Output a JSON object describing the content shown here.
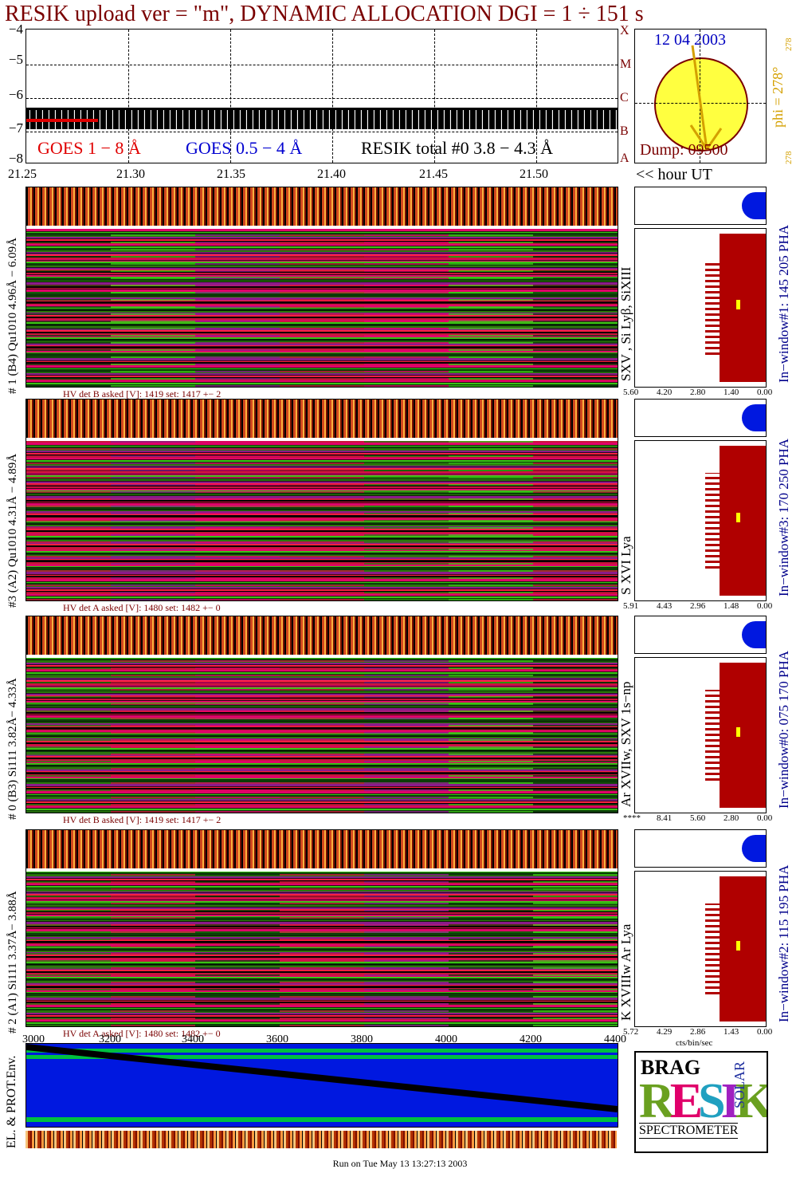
{
  "title": "RESIK upload ver = \"m\", DYNAMIC ALLOCATION  DGI =   1 ÷ 151 s",
  "lightcurve": {
    "yticks": [
      "−4",
      "−5",
      "−6",
      "−7",
      "−8"
    ],
    "goes18": "GOES 1 − 8 Å",
    "goes054": "GOES 0.5 − 4 Å",
    "resik": "RESIK  total #0  3.8 − 4.3 Å",
    "xticks": [
      "21.25",
      "21.30",
      "21.35",
      "21.40",
      "21.45",
      "21.50"
    ],
    "hour_label": "<< hour UT",
    "class_letters": [
      "X",
      "M",
      "C",
      "B",
      "A"
    ]
  },
  "sun": {
    "date": "12 04 2003",
    "dump": "Dump: 09500",
    "phi": "phi = 278°",
    "phi_small_top": "278",
    "phi_small_bottom": "278"
  },
  "panels": [
    {
      "left_label": "# 1 (B4) Qu1010 4.96Å − 6.09Å",
      "side_label": "SXV , Si Lyβ, SiXIII",
      "right_label": "In−window#1:  145 205 PHA",
      "hv": "HV det B asked [V]:  1419 set:  1417 +−    2",
      "ticks": [
        "5.60",
        "4.20",
        "2.80",
        "1.40",
        "0.00"
      ]
    },
    {
      "left_label": "#3 (A2) Qu1010  4.31Å − 4.89Å",
      "side_label": "S XVI Lya",
      "right_label": "In−window#3:  170 250 PHA",
      "hv": "HV det A asked [V]:  1480 set:  1482 +−    0",
      "ticks": [
        "5.91",
        "4.43",
        "2.96",
        "1.48",
        "0.00"
      ]
    },
    {
      "left_label": "# 0 (B3) Si111  3.82Å− 4.33Å",
      "side_label": "Ar XVIIw, SXV 1s−np",
      "right_label": "In−window#0:  075 170 PHA",
      "hv": "HV det B asked [V]:  1419 set:  1417 +−    2",
      "ticks": [
        "****",
        "8.41",
        "5.60",
        "2.80",
        "0.00"
      ]
    },
    {
      "left_label": "# 2 (A1) Si111  3.37Å− 3.88Å",
      "side_label": "K XVIIIw  Ar Lya",
      "right_label": "In−window#2:  115 195 PHA",
      "hv": "HV det A asked [V]:  1480 set:  1482 +−    0",
      "ticks": [
        "5.72",
        "4.29",
        "2.86",
        "1.43",
        "0.00"
      ],
      "unit": "cts/bin/sec"
    }
  ],
  "env": {
    "label": "EL. & PROT.Env.",
    "xticks": [
      "3000",
      "3200",
      "3400",
      "3600",
      "3800",
      "4000",
      "4200",
      "4400"
    ]
  },
  "logo": {
    "line1": "BRAG",
    "line2": "RESIK",
    "line3": "SOLAR",
    "line4": "SPECTROMETER"
  },
  "footer": "Run on Tue May 13 13:27:13 2003",
  "colors": {
    "title": "#7a0000",
    "goes18": "#e00000",
    "goes054": "#0000d0",
    "sun": "#ffff40",
    "hist_blue": "#0018e0",
    "hist_red": "#b00000"
  }
}
